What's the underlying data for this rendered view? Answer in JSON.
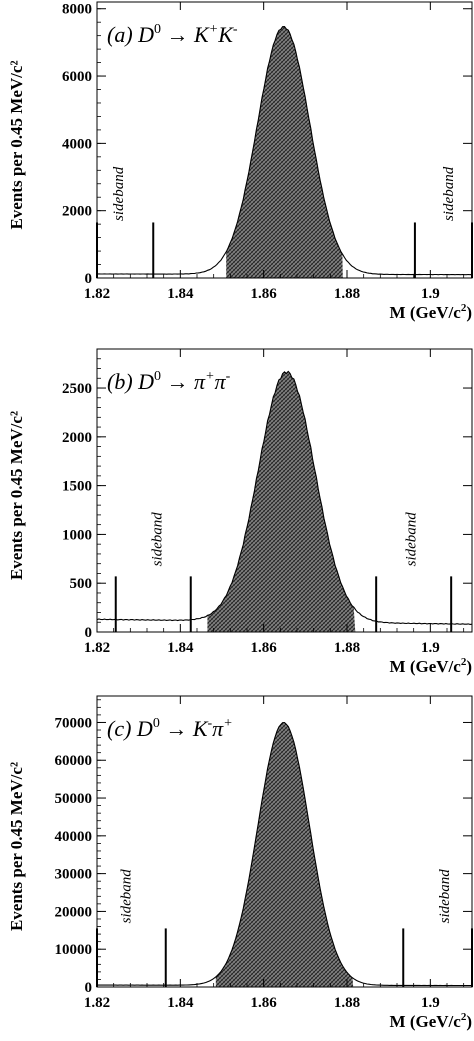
{
  "chart_data": [
    {
      "type": "area",
      "label": "(a)",
      "reaction": "D0 → K+K-",
      "reaction_parts": {
        "label": "(a)",
        "parent": "D",
        "parent_sup": "0",
        "arrow": "→",
        "p1": "K",
        "s1": "+",
        "p2": "K",
        "s2": "-"
      },
      "xlabel_main": "M (GeV/c",
      "xlabel_sup": "2",
      "xlabel_tail": ")",
      "ylabel": "Events per 0.45 MeV/c²",
      "xlim": [
        1.82,
        1.91
      ],
      "ylim": [
        0,
        8200
      ],
      "xticks": [
        1.82,
        1.84,
        1.86,
        1.88,
        1.9
      ],
      "xtick_labels": [
        "1.82",
        "1.84",
        "1.86",
        "1.88",
        "1.9"
      ],
      "yticks": [
        0,
        2000,
        4000,
        6000,
        8000
      ],
      "ytick_labels": [
        "0",
        "2000",
        "4000",
        "6000",
        "8000"
      ],
      "peak": {
        "mean": 1.8648,
        "sigma": 0.0063,
        "amplitude": 7350
      },
      "background": {
        "at_xmin": 120,
        "at_xmax": 100
      },
      "signal_window": [
        1.851,
        1.879
      ],
      "sideband_markers": [
        1.82,
        1.8335,
        1.8963,
        1.91
      ],
      "marker_height": 1650,
      "sideband_labels": [
        {
          "text": "sideband",
          "x": 1.8262,
          "y": 2500
        },
        {
          "text": "sideband",
          "x": 1.9055,
          "y": 2500
        }
      ]
    },
    {
      "type": "area",
      "label": "(b)",
      "reaction": "D0 → π+π-",
      "reaction_parts": {
        "label": "(b)",
        "parent": "D",
        "parent_sup": "0",
        "arrow": "→",
        "p1": "π",
        "s1": "+",
        "p2": "π",
        "s2": "-"
      },
      "xlabel_main": "M (GeV/c",
      "xlabel_sup": "2",
      "xlabel_tail": ")",
      "ylabel": "Events per 0.45 MeV/c²",
      "xlim": [
        1.82,
        1.91
      ],
      "ylim": [
        0,
        2900
      ],
      "xticks": [
        1.82,
        1.84,
        1.86,
        1.88,
        1.9
      ],
      "xtick_labels": [
        "1.82",
        "1.84",
        "1.86",
        "1.88",
        "1.9"
      ],
      "yticks": [
        0,
        500,
        1000,
        1500,
        2000,
        2500
      ],
      "ytick_labels": [
        "0",
        "500",
        "1000",
        "1500",
        "2000",
        "2500"
      ],
      "peak": {
        "mean": 1.8655,
        "sigma": 0.0068,
        "amplitude": 2560
      },
      "background": {
        "at_xmin": 130,
        "at_xmax": 80
      },
      "signal_window": [
        1.8465,
        1.882
      ],
      "sideband_markers": [
        1.8245,
        1.8425,
        1.887,
        1.905
      ],
      "marker_height": 570,
      "sideband_labels": [
        {
          "text": "sideband",
          "x": 1.8355,
          "y": 950
        },
        {
          "text": "sideband",
          "x": 1.8965,
          "y": 950
        }
      ]
    },
    {
      "type": "area",
      "label": "(c)",
      "reaction": "D0 → K-π+",
      "reaction_parts": {
        "label": "(c)",
        "parent": "D",
        "parent_sup": "0",
        "arrow": "→",
        "p1": "K",
        "s1": "-",
        "p2": "π",
        "s2": "+"
      },
      "xlabel_main": "M (GeV/c",
      "xlabel_sup": "2",
      "xlabel_tail": ")",
      "ylabel": "Events per 0.45 MeV/c²",
      "xlim": [
        1.82,
        1.91
      ],
      "ylim": [
        0,
        77000
      ],
      "xticks": [
        1.82,
        1.84,
        1.86,
        1.88,
        1.9
      ],
      "xtick_labels": [
        "1.82",
        "1.84",
        "1.86",
        "1.88",
        "1.9"
      ],
      "yticks": [
        0,
        10000,
        20000,
        30000,
        40000,
        50000,
        60000,
        70000
      ],
      "ytick_labels": [
        "0",
        "10000",
        "20000",
        "30000",
        "40000",
        "50000",
        "60000",
        "70000"
      ],
      "peak": {
        "mean": 1.8648,
        "sigma": 0.0062,
        "amplitude": 69500
      },
      "background": {
        "at_xmin": 500,
        "at_xmax": 400
      },
      "signal_window": [
        1.8485,
        1.8815
      ],
      "sideband_markers": [
        1.82,
        1.8365,
        1.8935,
        1.91
      ],
      "marker_height": 15500,
      "sideband_labels": [
        {
          "text": "sideband",
          "x": 1.828,
          "y": 24000
        },
        {
          "text": "sideband",
          "x": 1.9045,
          "y": 24000
        }
      ]
    }
  ]
}
